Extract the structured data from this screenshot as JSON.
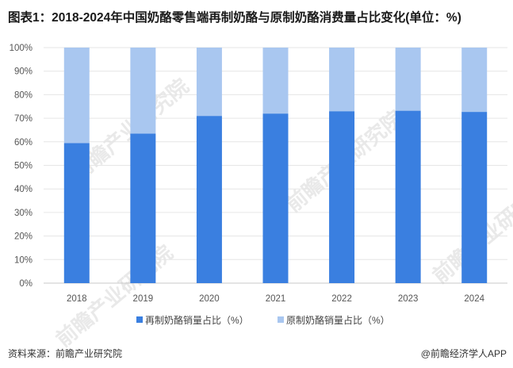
{
  "title": "图表1：2018-2024年中国奶酪零售端再制奶酪与原制奶酪消费量占比变化(单位：%)",
  "source": "资料来源：前瞻产业研究院",
  "brand": "@前瞻经济学人APP",
  "watermark": "前瞻产业研究院",
  "colors": {
    "processed": "#3A7FE0",
    "natural": "#A9C7F0",
    "grid": "#e6e6e6",
    "axis": "#c8c8c8"
  },
  "chart_data": {
    "type": "bar",
    "stacked": true,
    "categories": [
      "2018",
      "2019",
      "2020",
      "2021",
      "2022",
      "2023",
      "2024"
    ],
    "series": [
      {
        "name": "再制奶酪销量占比（%）",
        "values": [
          59.5,
          63.5,
          71,
          72,
          73,
          73.2,
          72.7
        ]
      },
      {
        "name": "原制奶酪销量占比（%）",
        "values": [
          40.5,
          36.5,
          29,
          28,
          27,
          26.8,
          27.3
        ]
      }
    ],
    "yticks": [
      "0%",
      "10%",
      "20%",
      "30%",
      "40%",
      "50%",
      "60%",
      "70%",
      "80%",
      "90%",
      "100%"
    ],
    "ylim": [
      0,
      100
    ],
    "grid": true,
    "legend": "bottom-center"
  }
}
